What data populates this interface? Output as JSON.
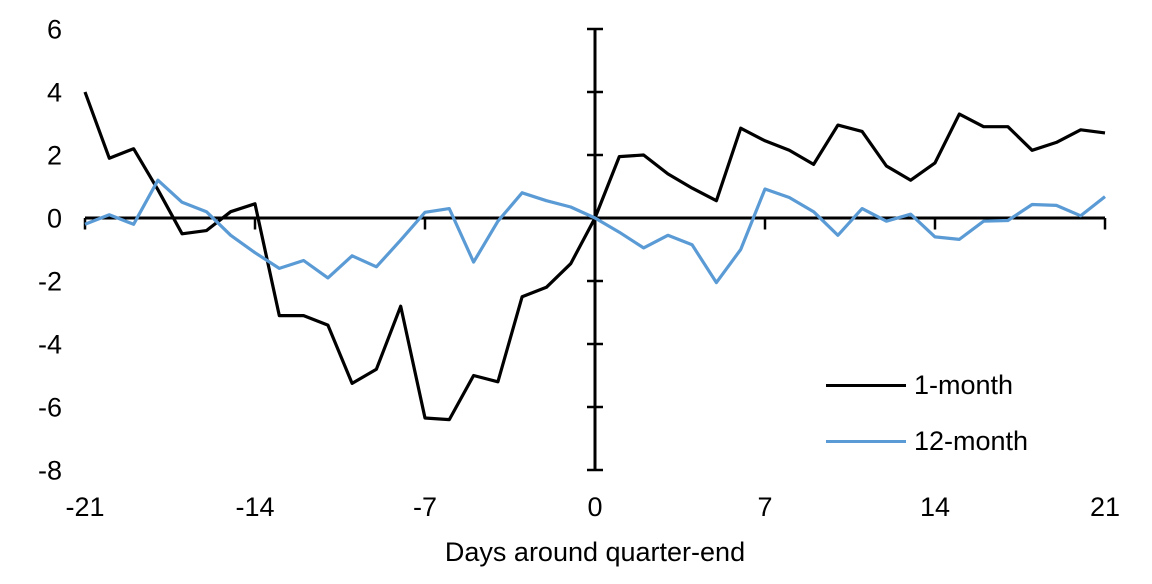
{
  "chart_data": {
    "type": "line",
    "title": "",
    "xlabel": "Days around quarter-end",
    "ylabel": "",
    "xlim": [
      -21,
      21
    ],
    "ylim": [
      -8,
      6
    ],
    "x_ticks": [
      -21,
      -14,
      -7,
      0,
      7,
      14,
      21
    ],
    "y_ticks": [
      6,
      4,
      2,
      0,
      -2,
      -4,
      -6,
      -8
    ],
    "grid": false,
    "legend_position": "lower-right",
    "x": [
      -21,
      -20,
      -19,
      -18,
      -17,
      -16,
      -15,
      -14,
      -13,
      -12,
      -11,
      -10,
      -9,
      -8,
      -7,
      -6,
      -5,
      -4,
      -3,
      -2,
      -1,
      0,
      1,
      2,
      3,
      4,
      5,
      6,
      7,
      8,
      9,
      10,
      11,
      12,
      13,
      14,
      15,
      16,
      17,
      18,
      19,
      20,
      21
    ],
    "series": [
      {
        "name": "1-month",
        "color": "#000000",
        "values": [
          4.0,
          1.9,
          2.2,
          0.9,
          -0.5,
          -0.4,
          0.2,
          0.45,
          -3.1,
          -3.1,
          -3.4,
          -5.25,
          -4.8,
          -2.8,
          -6.35,
          -6.4,
          -5.0,
          -5.2,
          -2.5,
          -2.2,
          -1.45,
          0.0,
          1.95,
          2.0,
          1.4,
          0.95,
          0.55,
          2.85,
          2.45,
          2.15,
          1.7,
          2.95,
          2.75,
          1.65,
          1.2,
          1.75,
          3.3,
          2.9,
          2.9,
          2.15,
          2.4,
          2.8,
          2.7
        ]
      },
      {
        "name": "12-month",
        "color": "#5B9BD5",
        "values": [
          -0.2,
          0.1,
          -0.2,
          1.2,
          0.5,
          0.2,
          -0.55,
          -1.1,
          -1.6,
          -1.35,
          -1.9,
          -1.2,
          -1.55,
          -0.7,
          0.18,
          0.3,
          -1.4,
          -0.1,
          0.8,
          0.55,
          0.35,
          0.0,
          -0.45,
          -0.95,
          -0.55,
          -0.85,
          -2.05,
          -1.0,
          0.92,
          0.65,
          0.2,
          -0.55,
          0.3,
          -0.1,
          0.12,
          -0.6,
          -0.68,
          -0.1,
          -0.08,
          0.43,
          0.4,
          0.07,
          0.68
        ]
      }
    ]
  }
}
